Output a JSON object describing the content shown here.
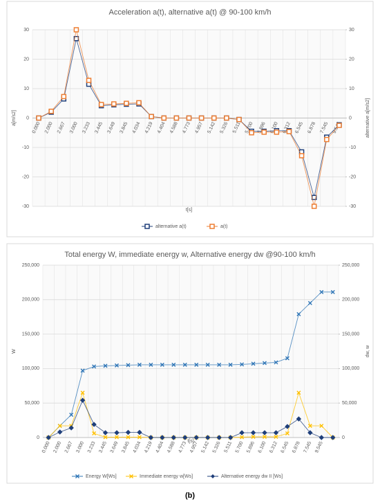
{
  "chart_data": [
    {
      "type": "line",
      "title": "Acceleration a(t), alternative  a(t) @ 90-100 km/h",
      "x_label": "t[s]",
      "y_label": "a[m/s2]",
      "y2_label": "alternative a[m/s2]",
      "categories": [
        "0.000",
        "2.000",
        "2.667",
        "3.000",
        "3.233",
        "3.445",
        "3.649",
        "3.845",
        "4.034",
        "4.219",
        "4.404",
        "4.588",
        "4.773",
        "4.957",
        "5.142",
        "5.326",
        "5.511",
        "5.700",
        "5.896",
        "6.100",
        "6.312",
        "6.545",
        "6.878",
        "7.545",
        "9.545"
      ],
      "series": [
        {
          "name": "alternative a(t)",
          "color": "#1f3f7a",
          "marker": "square",
          "axis": "y2",
          "values": [
            0,
            2,
            6.5,
            27,
            11.5,
            4.2,
            4.5,
            4.7,
            4.8,
            0.5,
            0,
            0,
            0,
            0,
            0,
            0,
            -0.5,
            -4.5,
            -4.5,
            -4.3,
            -4.3,
            -11.5,
            -27,
            -6.5,
            -2.3
          ]
        },
        {
          "name": "a(t)",
          "color": "#ed7d31",
          "marker": "square",
          "values": [
            0,
            2.3,
            7.3,
            30,
            12.8,
            4.6,
            4.8,
            5,
            5.2,
            0.5,
            0,
            0,
            0,
            0,
            0,
            0,
            -0.5,
            -5,
            -4.8,
            -4.8,
            -4.6,
            -12.8,
            -30,
            -7.3,
            -2.5
          ]
        }
      ],
      "ylim": [
        -30,
        30
      ],
      "yticks": [
        -30,
        -20,
        -10,
        0,
        10,
        20,
        30
      ],
      "y2lim": [
        -30,
        30
      ],
      "y2ticks": [
        -30,
        -20,
        -10,
        0,
        10,
        20,
        30
      ],
      "grid": true,
      "legend": "bottom"
    },
    {
      "type": "line",
      "title": "Total energy W, immediate energy w, Alternative energy dw @90-100 km/h",
      "x_label": "t[s]",
      "y_label": "W",
      "y2_label": "dw, w",
      "categories": [
        "0.000",
        "2.000",
        "2.667",
        "3.000",
        "3.233",
        "3.445",
        "3.649",
        "3.845",
        "4.034",
        "4.219",
        "4.404",
        "4.588",
        "4.773",
        "4.957",
        "5.142",
        "5.326",
        "5.511",
        "5.700",
        "5.896",
        "6.100",
        "6.312",
        "6.545",
        "6.878",
        "7.545",
        "9.545",
        null
      ],
      "series": [
        {
          "name": "Energy W[Ws]",
          "color": "#2e75b6",
          "marker": "x",
          "values": [
            0,
            17000,
            33000,
            97000,
            103000,
            104000,
            104500,
            105000,
            105500,
            105500,
            105500,
            105500,
            105500,
            105500,
            105500,
            105500,
            105500,
            106000,
            107000,
            108000,
            109000,
            115000,
            179000,
            195000,
            211000,
            211000
          ]
        },
        {
          "name": "Immediate energy w[Ws]",
          "color": "#ffc000",
          "marker": "x",
          "axis": "y2",
          "values": [
            0,
            17000,
            17000,
            65000,
            6000,
            500,
            500,
            500,
            500,
            0,
            0,
            0,
            0,
            0,
            0,
            0,
            0,
            500,
            1000,
            1000,
            1000,
            6000,
            65000,
            17000,
            17000,
            0
          ]
        },
        {
          "name": "Alternative energy dw II [Ws]",
          "color": "#1f3f7a",
          "marker": "diamond",
          "axis": "y2",
          "values": [
            0,
            8000,
            14000,
            54000,
            19000,
            7000,
            7000,
            7500,
            7500,
            0,
            0,
            0,
            0,
            0,
            0,
            0,
            0,
            7000,
            7000,
            7000,
            7000,
            16000,
            27000,
            7000,
            0,
            0
          ]
        }
      ],
      "ylim": [
        0,
        250000
      ],
      "yticks": [
        0,
        {
          "value": 50000,
          "label": "50,000"
        },
        {
          "value": 100000,
          "label": "100,000"
        },
        {
          "value": 150000,
          "label": "150,000"
        },
        {
          "value": 200000,
          "label": "200,000"
        },
        {
          "value": 250000,
          "label": "250,000"
        }
      ],
      "y2lim": [
        0,
        250000
      ],
      "y2ticks": [
        0,
        {
          "value": 50000,
          "label": "50,000"
        },
        {
          "value": 100000,
          "label": "100,000"
        },
        {
          "value": 150000,
          "label": "150,000"
        },
        {
          "value": 200000,
          "label": "200,000"
        },
        {
          "value": 250000,
          "label": "250,000"
        }
      ],
      "grid": true,
      "legend": "bottom"
    }
  ],
  "caption": "(b)"
}
